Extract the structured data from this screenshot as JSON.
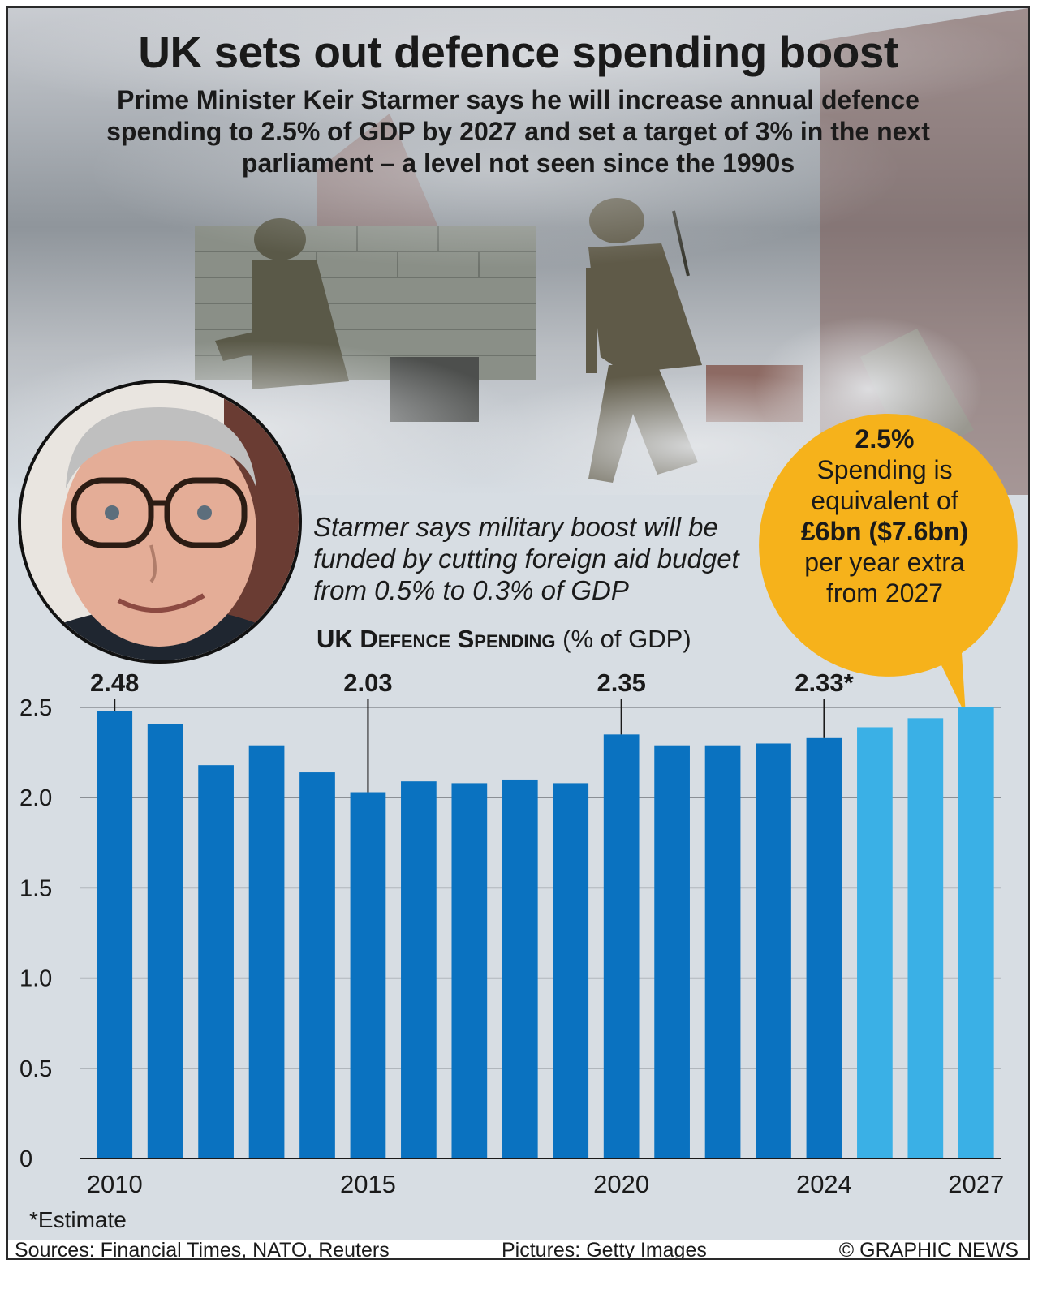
{
  "title": "UK sets out defence spending boost",
  "subtitle": "Prime Minister Keir Starmer says he will increase annual defence spending to 2.5% of GDP by 2027 and set a target of 3% in the next parliament – a level not seen since the 1990s",
  "quote": "Starmer says military boost will be funded by cutting foreign aid budget from 0.5% to 0.3% of GDP",
  "callout": {
    "value": "2.5%",
    "line1": "Spending is",
    "line2": "equivalent of",
    "amount": "£6bn ($7.6bn)",
    "line3": "per year extra",
    "line4": "from 2027"
  },
  "chart_heading": {
    "main": "UK Defence Spending",
    "unit": "(% of GDP)"
  },
  "estimate_note": "*Estimate",
  "footer": {
    "sources": "Sources: Financial Times, NATO, Reuters",
    "pictures": "Pictures: Getty Images",
    "credit": "© GRAPHIC NEWS"
  },
  "colors": {
    "actual_bar": "#0a72c0",
    "projected_bar": "#3ab0e6",
    "callout": "#f6b21b",
    "background": "#d7dde3"
  },
  "chart_data": {
    "type": "bar",
    "categories": [
      "2010",
      "2011",
      "2012",
      "2013",
      "2014",
      "2015",
      "2016",
      "2017",
      "2018",
      "2019",
      "2020",
      "2021",
      "2022",
      "2023",
      "2024",
      "2025",
      "2026",
      "2027"
    ],
    "values": [
      2.48,
      2.41,
      2.18,
      2.29,
      2.14,
      2.03,
      2.09,
      2.08,
      2.1,
      2.08,
      2.35,
      2.29,
      2.29,
      2.3,
      2.33,
      2.39,
      2.44,
      2.5
    ],
    "projected_from": "2025",
    "x_tick_labels": [
      "2010",
      "2015",
      "2020",
      "2024",
      "2027"
    ],
    "y_ticks": [
      "0",
      "0.5",
      "1.0",
      "1.5",
      "2.0",
      "2.5"
    ],
    "ylim": [
      0,
      2.5
    ],
    "labeled_points": [
      {
        "year": "2010",
        "label": "2.48"
      },
      {
        "year": "2015",
        "label": "2.03"
      },
      {
        "year": "2020",
        "label": "2.35"
      },
      {
        "year": "2024",
        "label": "2.33*"
      }
    ],
    "grid": true,
    "legend": "none"
  }
}
